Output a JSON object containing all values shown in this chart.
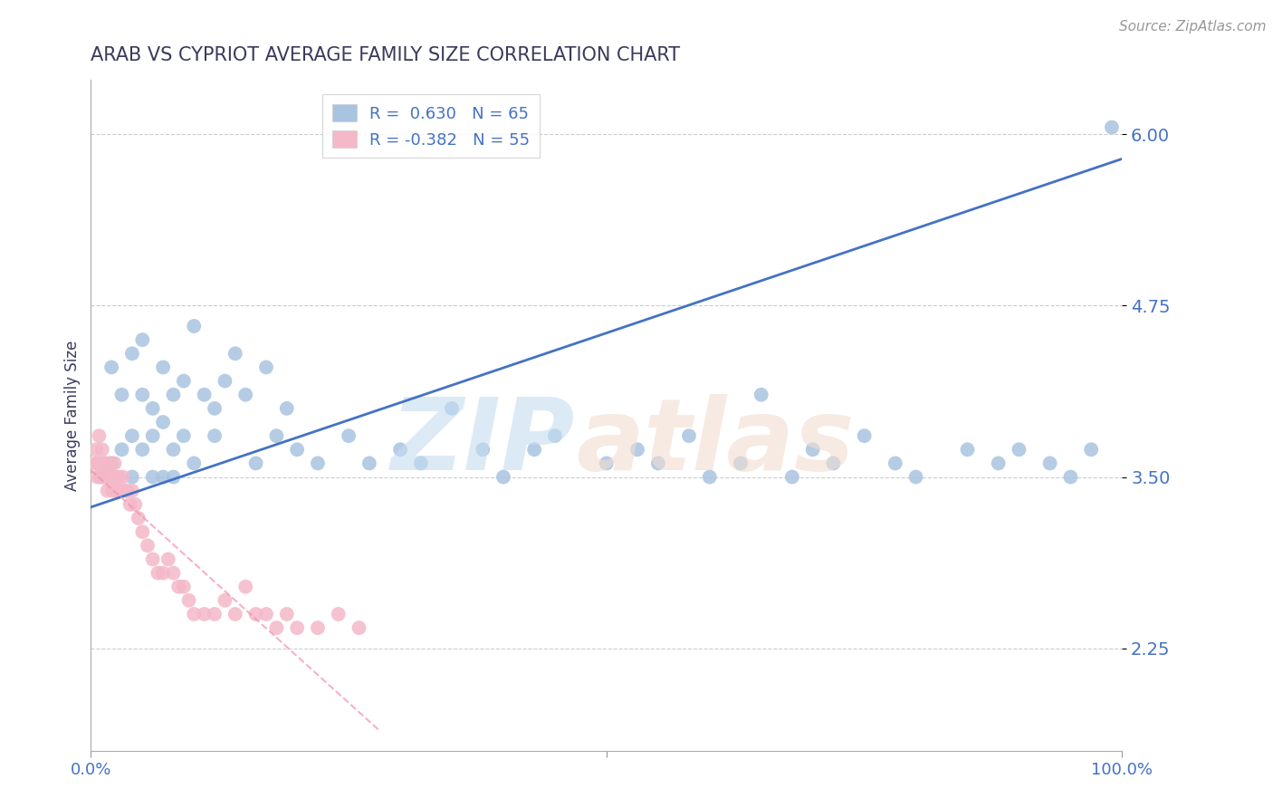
{
  "title": "ARAB VS CYPRIOT AVERAGE FAMILY SIZE CORRELATION CHART",
  "source_text": "Source: ZipAtlas.com",
  "ylabel": "Average Family Size",
  "xlim": [
    0.0,
    1.0
  ],
  "ylim": [
    1.5,
    6.4
  ],
  "yticks": [
    2.25,
    3.5,
    4.75,
    6.0
  ],
  "title_color": "#3a3a5c",
  "title_fontsize": 15,
  "axis_color": "#4472c4",
  "legend_entries": [
    {
      "label": "R =  0.630   N = 65",
      "color": "#a8c4e0"
    },
    {
      "label": "R = -0.382   N = 55",
      "color": "#f4b8c8"
    }
  ],
  "arab_scatter_x": [
    0.01,
    0.02,
    0.02,
    0.03,
    0.03,
    0.04,
    0.04,
    0.04,
    0.05,
    0.05,
    0.05,
    0.06,
    0.06,
    0.06,
    0.07,
    0.07,
    0.07,
    0.08,
    0.08,
    0.08,
    0.09,
    0.09,
    0.1,
    0.1,
    0.11,
    0.12,
    0.12,
    0.13,
    0.14,
    0.15,
    0.16,
    0.17,
    0.18,
    0.19,
    0.2,
    0.22,
    0.25,
    0.27,
    0.3,
    0.32,
    0.35,
    0.38,
    0.4,
    0.43,
    0.45,
    0.5,
    0.53,
    0.55,
    0.58,
    0.6,
    0.63,
    0.65,
    0.68,
    0.7,
    0.72,
    0.75,
    0.78,
    0.8,
    0.85,
    0.88,
    0.9,
    0.93,
    0.95,
    0.97,
    0.99
  ],
  "arab_scatter_y": [
    3.5,
    4.3,
    3.6,
    4.1,
    3.7,
    4.4,
    3.8,
    3.5,
    4.1,
    3.7,
    4.5,
    4.0,
    3.8,
    3.5,
    4.3,
    3.9,
    3.5,
    4.1,
    3.7,
    3.5,
    4.2,
    3.8,
    4.6,
    3.6,
    4.1,
    4.0,
    3.8,
    4.2,
    4.4,
    4.1,
    3.6,
    4.3,
    3.8,
    4.0,
    3.7,
    3.6,
    3.8,
    3.6,
    3.7,
    3.6,
    4.0,
    3.7,
    3.5,
    3.7,
    3.8,
    3.6,
    3.7,
    3.6,
    3.8,
    3.5,
    3.6,
    4.1,
    3.5,
    3.7,
    3.6,
    3.8,
    3.6,
    3.5,
    3.7,
    3.6,
    3.7,
    3.6,
    3.5,
    3.7,
    6.05
  ],
  "cypriot_scatter_x": [
    0.003,
    0.005,
    0.006,
    0.007,
    0.008,
    0.009,
    0.01,
    0.011,
    0.012,
    0.013,
    0.014,
    0.015,
    0.016,
    0.017,
    0.018,
    0.019,
    0.02,
    0.021,
    0.022,
    0.023,
    0.024,
    0.025,
    0.027,
    0.029,
    0.031,
    0.033,
    0.035,
    0.038,
    0.04,
    0.043,
    0.046,
    0.05,
    0.055,
    0.06,
    0.065,
    0.07,
    0.075,
    0.08,
    0.085,
    0.09,
    0.095,
    0.1,
    0.11,
    0.12,
    0.13,
    0.14,
    0.15,
    0.16,
    0.17,
    0.18,
    0.19,
    0.2,
    0.22,
    0.24,
    0.26
  ],
  "cypriot_scatter_y": [
    3.6,
    3.7,
    3.5,
    3.6,
    3.8,
    3.5,
    3.6,
    3.7,
    3.5,
    3.6,
    3.5,
    3.6,
    3.4,
    3.5,
    3.6,
    3.5,
    3.5,
    3.4,
    3.5,
    3.6,
    3.5,
    3.4,
    3.5,
    3.4,
    3.5,
    3.4,
    3.4,
    3.3,
    3.4,
    3.3,
    3.2,
    3.1,
    3.0,
    2.9,
    2.8,
    2.8,
    2.9,
    2.8,
    2.7,
    2.7,
    2.6,
    2.5,
    2.5,
    2.5,
    2.6,
    2.5,
    2.7,
    2.5,
    2.5,
    2.4,
    2.5,
    2.4,
    2.4,
    2.5,
    2.4
  ],
  "arab_line_color": "#4472c4",
  "cypriot_line_color": "#f48fb1",
  "arab_dot_color": "#a8c4e0",
  "cypriot_dot_color": "#f4b8c8",
  "grid_color": "#c8c8c8",
  "background_color": "#ffffff",
  "arab_line_x": [
    0.0,
    1.0
  ],
  "arab_line_y": [
    3.28,
    5.82
  ],
  "cypriot_line_x": [
    0.0,
    0.28
  ],
  "cypriot_line_y": [
    3.55,
    1.65
  ]
}
